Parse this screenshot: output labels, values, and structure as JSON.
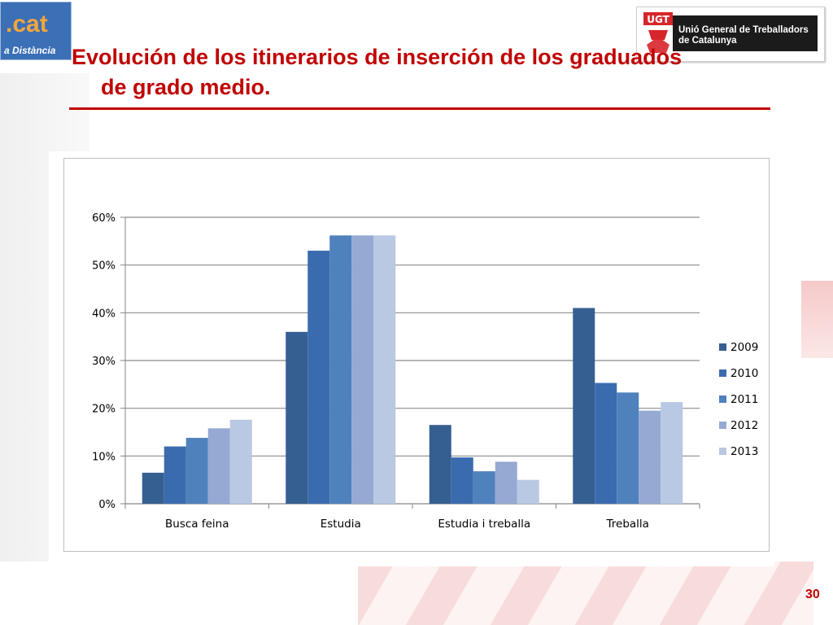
{
  "branding": {
    "left_logo_main": ".cat",
    "left_logo_sub": "a Distància",
    "ugt_mark": "UGT",
    "ugt_name_line1": "Unió General de Treballadors",
    "ugt_name_line2": "de Catalunya"
  },
  "slide": {
    "title_line1": "Evolución de los itinerarios de inserción de los graduados",
    "title_line2": "de grado medio.",
    "page_number": "30"
  },
  "colors": {
    "accent": "#c00000",
    "series": [
      "#365f91",
      "#3a6baf",
      "#4f81bd",
      "#95a9d2",
      "#b9c8e3"
    ]
  },
  "chart_data": {
    "type": "bar",
    "categories": [
      "Busca feina",
      "Estudia",
      "Estudia i treballa",
      "Treballa"
    ],
    "series": [
      {
        "name": "2009",
        "values": [
          6.5,
          36,
          16.5,
          41
        ]
      },
      {
        "name": "2010",
        "values": [
          12,
          53,
          9.7,
          25.3
        ]
      },
      {
        "name": "2011",
        "values": [
          13.8,
          56.2,
          6.8,
          23.3
        ]
      },
      {
        "name": "2012",
        "values": [
          15.8,
          56.2,
          8.8,
          19.5
        ]
      },
      {
        "name": "2013",
        "values": [
          17.6,
          56.2,
          5,
          21.3
        ]
      }
    ],
    "y_ticks": [
      "0%",
      "10%",
      "20%",
      "30%",
      "40%",
      "50%",
      "60%"
    ],
    "ylim": [
      0,
      60
    ],
    "y_unit": "%",
    "grid": true,
    "legend_position": "right"
  }
}
